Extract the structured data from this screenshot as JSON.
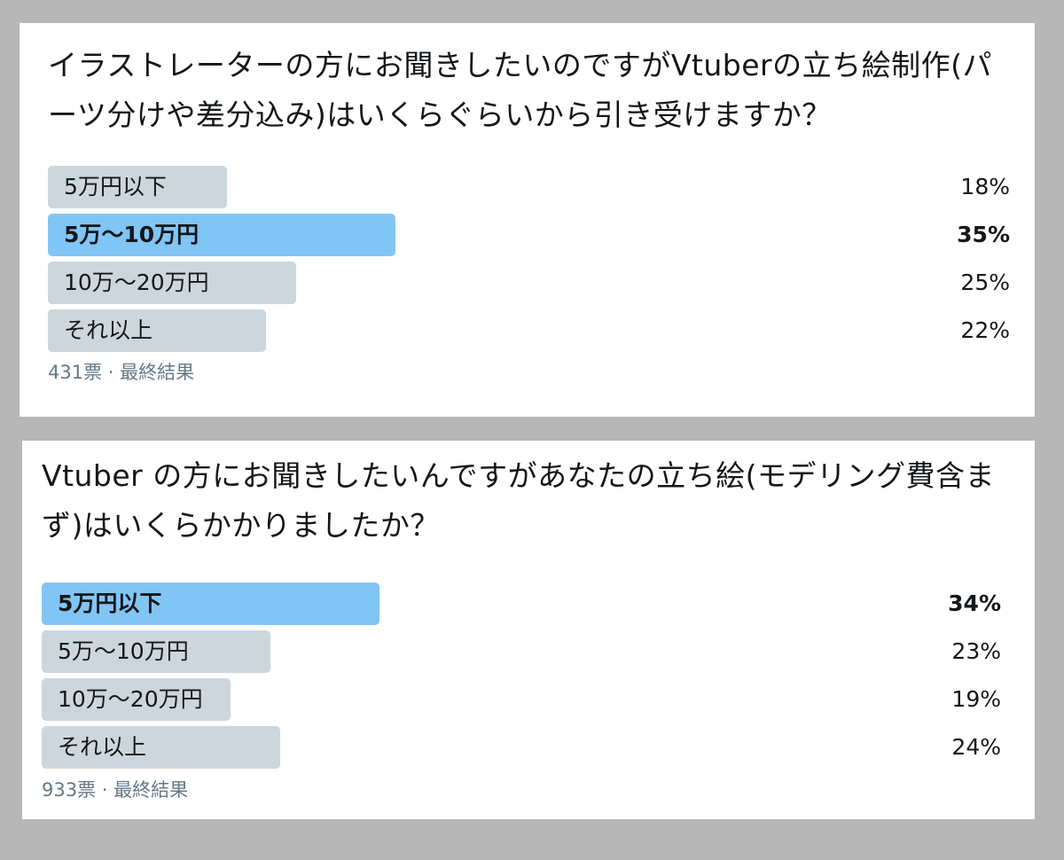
{
  "polls": [
    {
      "question": "イラストレーターの方にお聞きしたいのですがVtuberの立ち絵制作(パーツ分けや差分込み)はいくらぐらいから引き受けますか？",
      "options": [
        {
          "label": "5万円以下",
          "percent": "18%",
          "value": 18,
          "winner": false
        },
        {
          "label": "5万〜10万円",
          "percent": "35%",
          "value": 35,
          "winner": true
        },
        {
          "label": "10万〜20万円",
          "percent": "25%",
          "value": 25,
          "winner": false
        },
        {
          "label": "それ以上",
          "percent": "22%",
          "value": 22,
          "winner": false
        }
      ],
      "votes": "431票",
      "status": "最終結果"
    },
    {
      "question": "Vtuber の方にお聞きしたいんですがあなたの立ち絵(モデリング費含まず)はいくらかかりましたか？",
      "options": [
        {
          "label": "5万円以下",
          "percent": "34%",
          "value": 34,
          "winner": true
        },
        {
          "label": "5万〜10万円",
          "percent": "23%",
          "value": 23,
          "winner": false
        },
        {
          "label": "10万〜20万円",
          "percent": "19%",
          "value": 19,
          "winner": false
        },
        {
          "label": "それ以上",
          "percent": "24%",
          "value": 24,
          "winner": false
        }
      ],
      "votes": "933票",
      "status": "最終結果"
    }
  ],
  "colors": {
    "winner_bar": "#81c5f5",
    "default_bar": "#ccd6dd",
    "meta_text": "#657786",
    "background": "#b7b7b7"
  }
}
